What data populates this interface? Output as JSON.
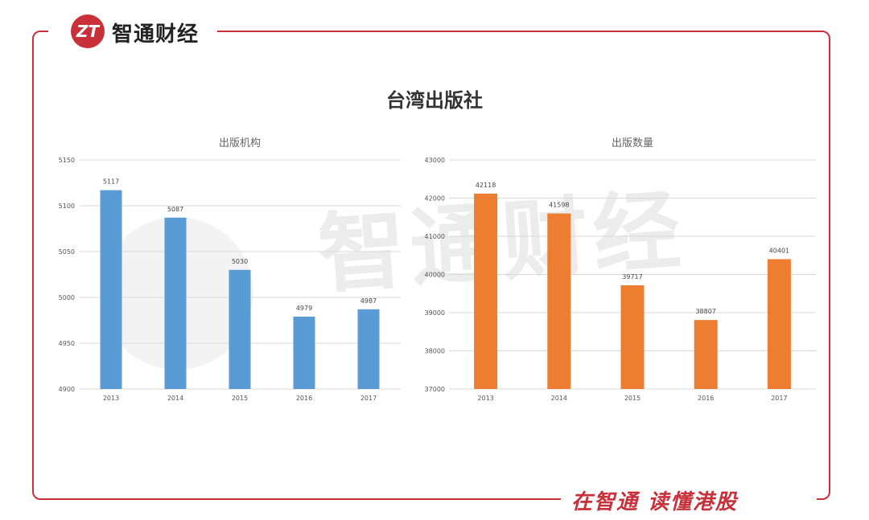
{
  "brand": {
    "logo_mark": "ZT",
    "name": "智通财经",
    "slogan": "在智通 读懂港股"
  },
  "main_title": "台湾出版社",
  "colors": {
    "accent": "#c8313a",
    "blue": "#5b9bd5",
    "orange": "#ed7d31"
  },
  "chart_data": [
    {
      "type": "bar",
      "title": "出版机构",
      "categories": [
        "2013",
        "2014",
        "2015",
        "2016",
        "2017"
      ],
      "values": [
        5117,
        5087,
        5030,
        4979,
        4987
      ],
      "ylim": [
        4900,
        5150
      ],
      "yticks": [
        4900,
        4950,
        5000,
        5050,
        5100,
        5150
      ],
      "grid": true,
      "color": "#5b9bd5"
    },
    {
      "type": "bar",
      "title": "出版数量",
      "categories": [
        "2013",
        "2014",
        "2015",
        "2016",
        "2017"
      ],
      "values": [
        42118,
        41598,
        39717,
        38807,
        40401
      ],
      "ylim": [
        37000,
        43000
      ],
      "yticks": [
        37000,
        38000,
        39000,
        40000,
        41000,
        42000,
        43000
      ],
      "grid": true,
      "color": "#ed7d31"
    }
  ]
}
